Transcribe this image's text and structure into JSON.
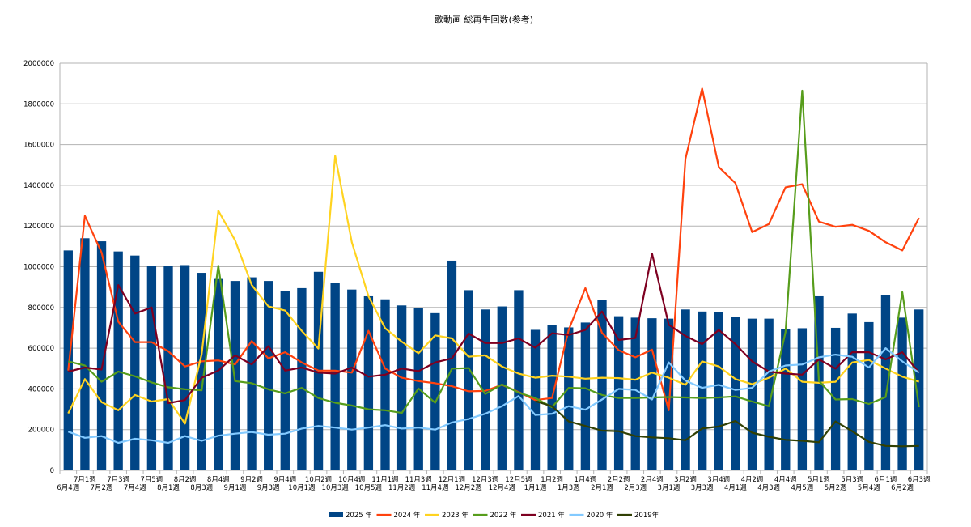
{
  "chart_data": {
    "type": "bar",
    "title": "歌動画 総再生回数(参考)",
    "xlabel": "",
    "ylabel": "",
    "ylim": [
      0,
      2000000
    ],
    "yticks": [
      0,
      200000,
      400000,
      600000,
      800000,
      1000000,
      1200000,
      1400000,
      1600000,
      1800000,
      2000000
    ],
    "grid": true,
    "legend_position": "bottom",
    "categories": [
      "6月4週",
      "7月1週",
      "7月2週",
      "7月3週",
      "7月4週",
      "7月5週",
      "8月1週",
      "8月2週",
      "8月3週",
      "8月4週",
      "9月1週",
      "9月2週",
      "9月3週",
      "9月4週",
      "10月1週",
      "10月2週",
      "10月3週",
      "10月4週",
      "10月5週",
      "11月1週",
      "11月2週",
      "11月3週",
      "11月4週",
      "12月1週",
      "12月2週",
      "12月3週",
      "12月4週",
      "12月5週",
      "1月1週",
      "1月2週",
      "1月3週",
      "1月4週",
      "2月1週",
      "2月2週",
      "2月3週",
      "2月4週",
      "3月1週",
      "3月2週",
      "3月3週",
      "3月4週",
      "4月1週",
      "4月2週",
      "4月3週",
      "4月4週",
      "4月5週",
      "5月1週",
      "5月2週",
      "5月3週",
      "5月4週",
      "6月1週",
      "6月2週",
      "6月3週"
    ],
    "series": [
      {
        "name": "2025 年",
        "kind": "bar",
        "color": "#004586",
        "values": [
          1080000,
          1140000,
          1125000,
          1075000,
          1055000,
          1003000,
          1005000,
          1008000,
          970000,
          940000,
          930000,
          948000,
          930000,
          880000,
          895000,
          975000,
          920000,
          888000,
          855000,
          840000,
          810000,
          797000,
          772000,
          1030000,
          885000,
          790000,
          805000,
          885000,
          690000,
          712000,
          702000,
          726000,
          837000,
          757000,
          750000,
          747000,
          745000,
          790000,
          780000,
          776000,
          755000,
          745000,
          745000,
          695000,
          698000,
          855000,
          700000,
          770000,
          728000,
          860000,
          750000,
          790000
        ]
      },
      {
        "name": "2024 年",
        "kind": "line",
        "color": "#ff420e",
        "values": [
          490000,
          1250000,
          1070000,
          730000,
          630000,
          630000,
          585000,
          510000,
          535000,
          540000,
          520000,
          635000,
          550000,
          580000,
          530000,
          490000,
          490000,
          480000,
          685000,
          500000,
          455000,
          438000,
          428000,
          413000,
          388000,
          390000,
          420000,
          385000,
          345000,
          355000,
          690000,
          895000,
          675000,
          590000,
          555000,
          593000,
          295000,
          1530000,
          1875000,
          1490000,
          1410000,
          1170000,
          1210000,
          1390000,
          1405000,
          1222000,
          1196000,
          1206000,
          1176000,
          1120000,
          1080000,
          1240000
        ]
      },
      {
        "name": "2023 年",
        "kind": "line",
        "color": "#ffd320",
        "values": [
          280000,
          448000,
          335000,
          295000,
          370000,
          338000,
          350000,
          230000,
          570000,
          1275000,
          1130000,
          910000,
          805000,
          785000,
          685000,
          598000,
          1545000,
          1120000,
          855000,
          698000,
          632000,
          575000,
          663000,
          648000,
          558000,
          565000,
          510000,
          475000,
          455000,
          465000,
          460000,
          450000,
          455000,
          453000,
          445000,
          480000,
          455000,
          420000,
          535000,
          510000,
          448000,
          423000,
          455000,
          500000,
          435000,
          430000,
          435000,
          530000,
          542000,
          500000,
          460000,
          435000
        ]
      },
      {
        "name": "2022 年",
        "kind": "line",
        "color": "#579d1c",
        "values": [
          535000,
          515000,
          435000,
          485000,
          462000,
          432000,
          408000,
          398000,
          393000,
          1005000,
          438000,
          428000,
          398000,
          378000,
          405000,
          355000,
          332000,
          318000,
          300000,
          295000,
          282000,
          402000,
          332000,
          500000,
          502000,
          375000,
          422000,
          382000,
          355000,
          310000,
          405000,
          403000,
          370000,
          355000,
          355000,
          358000,
          360000,
          358000,
          355000,
          358000,
          363000,
          338000,
          315000,
          680000,
          1865000,
          440000,
          348000,
          350000,
          326000,
          360000,
          875000,
          310000
        ]
      },
      {
        "name": "2021 年",
        "kind": "line",
        "color": "#7e0021",
        "values": [
          485000,
          505000,
          495000,
          910000,
          770000,
          800000,
          330000,
          345000,
          455000,
          490000,
          565000,
          520000,
          610000,
          490000,
          505000,
          480000,
          475000,
          505000,
          460000,
          470000,
          500000,
          487000,
          530000,
          550000,
          672000,
          625000,
          625000,
          648000,
          602000,
          673000,
          665000,
          690000,
          780000,
          640000,
          650000,
          1065000,
          715000,
          660000,
          620000,
          690000,
          620000,
          535000,
          485000,
          475000,
          470000,
          545000,
          500000,
          580000,
          580000,
          545000,
          580000,
          480000
        ]
      },
      {
        "name": "2020 年",
        "kind": "line",
        "color": "#83caff",
        "values": [
          190000,
          160000,
          168000,
          135000,
          155000,
          148000,
          135000,
          168000,
          145000,
          170000,
          180000,
          188000,
          175000,
          180000,
          205000,
          218000,
          210000,
          200000,
          210000,
          222000,
          205000,
          210000,
          200000,
          235000,
          252000,
          278000,
          315000,
          365000,
          272000,
          278000,
          315000,
          298000,
          348000,
          400000,
          395000,
          348000,
          530000,
          440000,
          405000,
          420000,
          395000,
          405000,
          485000,
          515000,
          520000,
          555000,
          568000,
          558000,
          505000,
          600000,
          535000,
          480000
        ]
      },
      {
        "name": "2019年",
        "kind": "line",
        "color": "#314004",
        "values": [
          null,
          null,
          null,
          null,
          null,
          null,
          null,
          null,
          null,
          null,
          null,
          null,
          null,
          null,
          null,
          null,
          null,
          null,
          null,
          null,
          null,
          null,
          null,
          null,
          null,
          null,
          null,
          null,
          340000,
          315000,
          240000,
          218000,
          195000,
          192000,
          168000,
          162000,
          158000,
          148000,
          205000,
          215000,
          242000,
          185000,
          165000,
          150000,
          145000,
          138000,
          240000,
          192000,
          140000,
          120000,
          118000,
          120000
        ]
      }
    ]
  }
}
